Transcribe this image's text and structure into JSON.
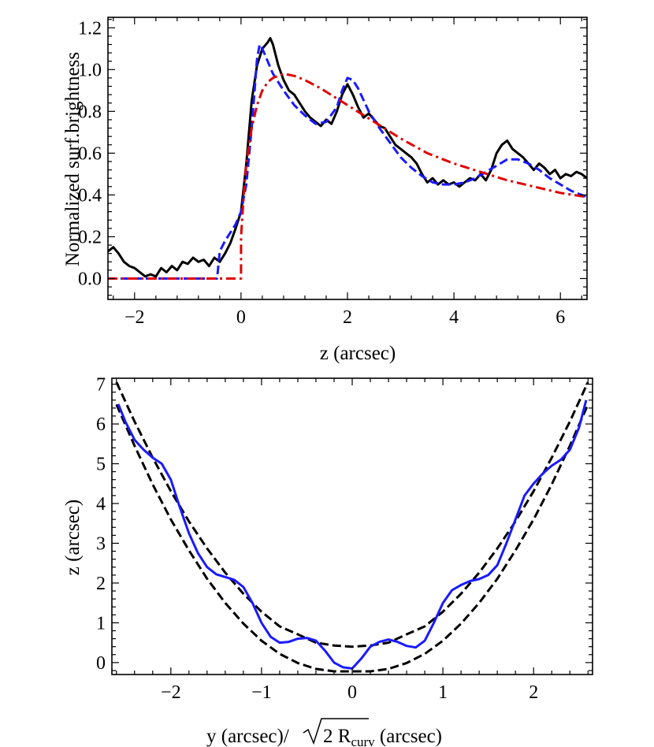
{
  "chart_data": [
    {
      "type": "line",
      "title": "",
      "xlabel": "z (arcsec)",
      "ylabel": "Normalized surf.brightness",
      "xlim": [
        -2.5,
        6.5
      ],
      "ylim": [
        -0.1,
        1.25
      ],
      "xticks": [
        -2,
        0,
        2,
        4,
        6
      ],
      "yticks": [
        0.0,
        0.2,
        0.4,
        0.6,
        0.8,
        1.0,
        1.2
      ],
      "xtick_labels": [
        "−2",
        "0",
        "2",
        "4",
        "6"
      ],
      "ytick_labels": [
        "0.0",
        "0.2",
        "0.4",
        "0.6",
        "0.8",
        "1.0",
        "1.2"
      ],
      "grid": false,
      "series": [
        {
          "style": "solid",
          "color": "#000000",
          "x": [
            -2.5,
            -2.4,
            -2.3,
            -2.2,
            -2.1,
            -2.0,
            -1.9,
            -1.8,
            -1.7,
            -1.6,
            -1.5,
            -1.4,
            -1.3,
            -1.2,
            -1.1,
            -1.0,
            -0.9,
            -0.8,
            -0.7,
            -0.6,
            -0.5,
            -0.4,
            -0.3,
            -0.2,
            -0.1,
            0.0,
            0.1,
            0.2,
            0.3,
            0.4,
            0.5,
            0.55,
            0.6,
            0.7,
            0.8,
            0.9,
            1.0,
            1.1,
            1.2,
            1.3,
            1.4,
            1.5,
            1.6,
            1.7,
            1.8,
            1.9,
            2.0,
            2.1,
            2.2,
            2.3,
            2.4,
            2.5,
            2.6,
            2.7,
            2.8,
            2.9,
            3.0,
            3.1,
            3.2,
            3.3,
            3.4,
            3.5,
            3.6,
            3.7,
            3.8,
            3.9,
            4.0,
            4.1,
            4.2,
            4.3,
            4.4,
            4.5,
            4.6,
            4.7,
            4.8,
            4.9,
            5.0,
            5.1,
            5.2,
            5.3,
            5.4,
            5.5,
            5.6,
            5.7,
            5.8,
            5.9,
            6.0,
            6.1,
            6.2,
            6.3,
            6.4,
            6.5
          ],
          "y": [
            0.13,
            0.15,
            0.12,
            0.08,
            0.06,
            0.05,
            0.03,
            0.01,
            0.02,
            0.01,
            0.05,
            0.03,
            0.06,
            0.04,
            0.08,
            0.07,
            0.1,
            0.08,
            0.09,
            0.06,
            0.1,
            0.08,
            0.12,
            0.17,
            0.24,
            0.32,
            0.55,
            0.85,
            1.02,
            1.1,
            1.13,
            1.15,
            1.12,
            1.02,
            0.95,
            0.9,
            0.88,
            0.84,
            0.8,
            0.77,
            0.75,
            0.73,
            0.76,
            0.74,
            0.8,
            0.88,
            0.93,
            0.88,
            0.82,
            0.77,
            0.79,
            0.76,
            0.73,
            0.72,
            0.68,
            0.64,
            0.62,
            0.6,
            0.58,
            0.55,
            0.5,
            0.46,
            0.48,
            0.45,
            0.47,
            0.45,
            0.46,
            0.44,
            0.46,
            0.48,
            0.47,
            0.5,
            0.47,
            0.52,
            0.6,
            0.64,
            0.66,
            0.62,
            0.6,
            0.58,
            0.55,
            0.52,
            0.55,
            0.53,
            0.5,
            0.52,
            0.48,
            0.5,
            0.49,
            0.51,
            0.5,
            0.48
          ]
        },
        {
          "style": "dashed",
          "color": "#1a1aff",
          "x": [
            -2.5,
            -0.5,
            -0.45,
            -0.4,
            -0.3,
            -0.2,
            -0.1,
            0.0,
            0.1,
            0.2,
            0.3,
            0.35,
            0.4,
            0.5,
            0.6,
            0.8,
            1.0,
            1.2,
            1.4,
            1.6,
            1.8,
            1.9,
            2.0,
            2.1,
            2.2,
            2.4,
            2.6,
            2.8,
            3.0,
            3.2,
            3.4,
            3.6,
            3.8,
            4.0,
            4.2,
            4.4,
            4.6,
            4.8,
            5.0,
            5.2,
            5.4,
            5.6,
            5.8,
            6.0,
            6.2,
            6.4,
            6.5
          ],
          "y": [
            0.0,
            0.0,
            0.0,
            0.13,
            0.18,
            0.22,
            0.26,
            0.32,
            0.45,
            0.72,
            1.05,
            1.12,
            1.1,
            1.04,
            0.98,
            0.9,
            0.83,
            0.78,
            0.74,
            0.75,
            0.82,
            0.9,
            0.96,
            0.95,
            0.91,
            0.8,
            0.72,
            0.65,
            0.58,
            0.53,
            0.49,
            0.46,
            0.45,
            0.45,
            0.46,
            0.48,
            0.51,
            0.54,
            0.57,
            0.57,
            0.55,
            0.52,
            0.48,
            0.45,
            0.42,
            0.4,
            0.39
          ]
        },
        {
          "style": "dashdot",
          "color": "#e00000",
          "x": [
            -2.5,
            0.0,
            0.0,
            0.05,
            0.1,
            0.2,
            0.3,
            0.4,
            0.5,
            0.6,
            0.8,
            1.0,
            1.2,
            1.5,
            2.0,
            2.5,
            3.0,
            3.5,
            4.0,
            4.5,
            5.0,
            5.5,
            6.0,
            6.5
          ],
          "y": [
            0.0,
            0.0,
            0.2,
            0.4,
            0.55,
            0.72,
            0.83,
            0.9,
            0.94,
            0.96,
            0.98,
            0.97,
            0.95,
            0.91,
            0.83,
            0.75,
            0.67,
            0.6,
            0.55,
            0.51,
            0.47,
            0.44,
            0.41,
            0.39
          ]
        }
      ]
    },
    {
      "type": "line",
      "title": "",
      "xlabel_main": "y (arcsec)/",
      "xlabel_radicand": "2 R",
      "xlabel_sub": "curv",
      "xlabel_tail": " (arcsec)",
      "ylabel": "z (arcsec)",
      "xlim": [
        -2.65,
        2.65
      ],
      "ylim": [
        -0.3,
        7.15
      ],
      "xticks": [
        -2,
        -1,
        0,
        1,
        2
      ],
      "yticks": [
        0,
        1,
        2,
        3,
        4,
        5,
        6,
        7
      ],
      "xtick_labels": [
        "−2",
        "−1",
        "0",
        "1",
        "2"
      ],
      "ytick_labels": [
        "0",
        "1",
        "2",
        "3",
        "4",
        "5",
        "6",
        "7"
      ],
      "grid": false,
      "series": [
        {
          "style": "dashed",
          "color": "#000000",
          "x": [
            -2.6,
            -2.4,
            -2.2,
            -2.0,
            -1.8,
            -1.6,
            -1.4,
            -1.2,
            -1.0,
            -0.8,
            -0.6,
            -0.4,
            -0.2,
            0.0,
            0.2,
            0.4,
            0.6,
            0.8,
            1.0,
            1.2,
            1.4,
            1.6,
            1.8,
            2.0,
            2.2,
            2.4,
            2.6
          ],
          "y": [
            6.49,
            5.45,
            4.48,
            3.6,
            2.82,
            2.11,
            1.5,
            0.98,
            0.55,
            0.22,
            -0.01,
            -0.16,
            -0.22,
            -0.22,
            -0.22,
            -0.16,
            -0.01,
            0.22,
            0.55,
            0.98,
            1.5,
            2.11,
            2.82,
            3.6,
            4.48,
            5.45,
            6.49
          ]
        },
        {
          "style": "dashed",
          "color": "#000000",
          "x": [
            -2.6,
            -2.4,
            -2.2,
            -2.0,
            -1.8,
            -1.6,
            -1.4,
            -1.2,
            -1.0,
            -0.8,
            -0.6,
            -0.4,
            -0.2,
            0.0,
            0.2,
            0.4,
            0.6,
            0.8,
            1.0,
            1.2,
            1.4,
            1.6,
            1.8,
            2.0,
            2.2,
            2.4,
            2.6
          ],
          "y": [
            7.05,
            6.06,
            5.15,
            4.31,
            3.55,
            2.87,
            2.26,
            1.73,
            1.28,
            0.91,
            0.71,
            0.5,
            0.43,
            0.4,
            0.43,
            0.5,
            0.71,
            0.91,
            1.28,
            1.73,
            2.26,
            2.87,
            3.55,
            4.31,
            5.15,
            6.06,
            7.05
          ]
        },
        {
          "style": "solid",
          "color": "#1a1aff",
          "x": [
            -2.58,
            -2.5,
            -2.4,
            -2.3,
            -2.2,
            -2.1,
            -2.0,
            -1.9,
            -1.8,
            -1.7,
            -1.6,
            -1.5,
            -1.4,
            -1.3,
            -1.2,
            -1.1,
            -1.0,
            -0.9,
            -0.8,
            -0.7,
            -0.6,
            -0.5,
            -0.4,
            -0.3,
            -0.2,
            -0.1,
            0.0,
            0.1,
            0.2,
            0.3,
            0.4,
            0.5,
            0.6,
            0.7,
            0.8,
            0.9,
            1.0,
            1.1,
            1.2,
            1.3,
            1.4,
            1.5,
            1.6,
            1.7,
            1.8,
            1.9,
            2.0,
            2.1,
            2.2,
            2.3,
            2.4,
            2.5,
            2.58
          ],
          "y": [
            6.5,
            6.05,
            5.6,
            5.35,
            5.15,
            5.0,
            4.6,
            3.9,
            3.25,
            2.75,
            2.4,
            2.22,
            2.15,
            2.08,
            1.9,
            1.5,
            1.0,
            0.65,
            0.5,
            0.52,
            0.6,
            0.62,
            0.55,
            0.3,
            0.0,
            -0.12,
            -0.15,
            0.1,
            0.4,
            0.52,
            0.58,
            0.52,
            0.42,
            0.38,
            0.55,
            1.0,
            1.5,
            1.82,
            1.95,
            2.05,
            2.1,
            2.2,
            2.45,
            3.0,
            3.6,
            4.2,
            4.5,
            4.75,
            4.95,
            5.1,
            5.35,
            5.9,
            6.6
          ]
        }
      ]
    }
  ]
}
